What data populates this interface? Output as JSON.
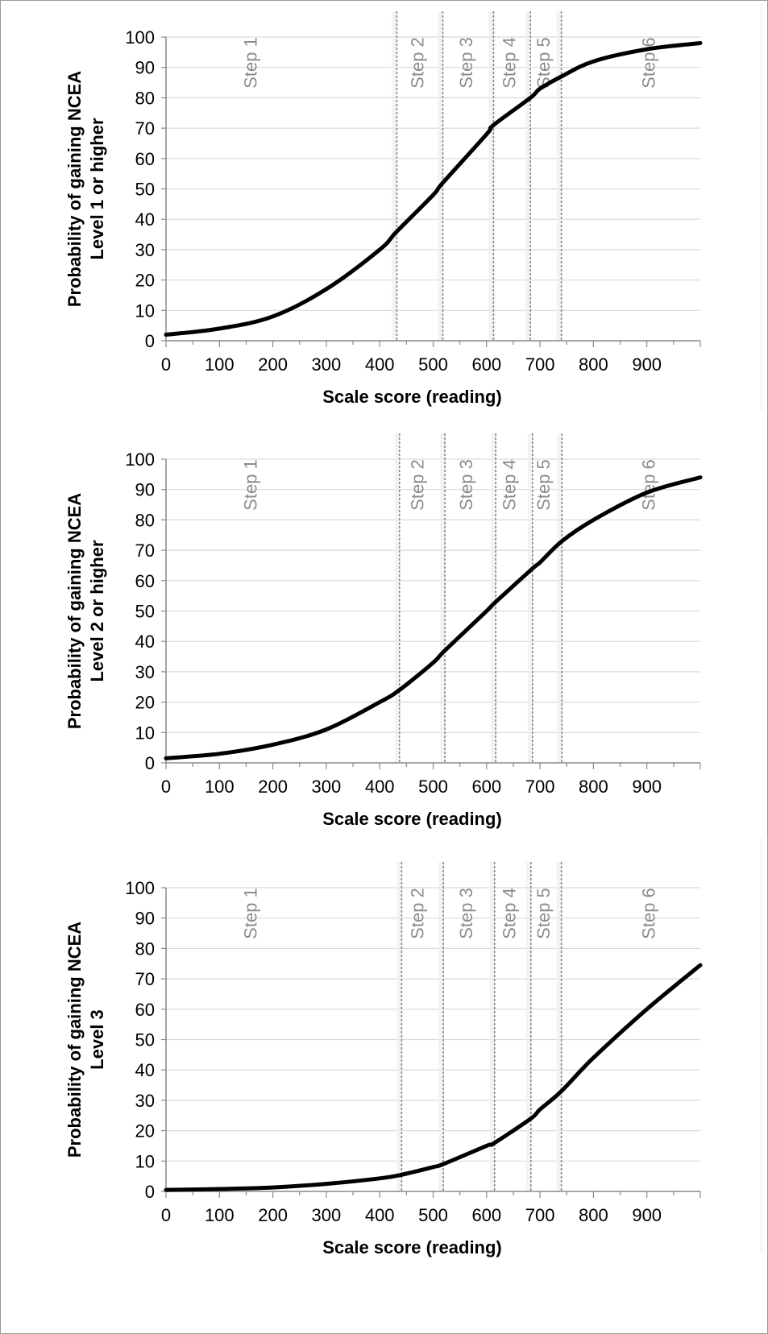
{
  "chart_data": [
    {
      "type": "line",
      "xlabel": "Scale score (reading)",
      "ylabel": [
        "Probability of gaining NCEA",
        "Level 1 or higher"
      ],
      "xlim": [
        0,
        1000
      ],
      "ylim": [
        0,
        100
      ],
      "x_ticks": [
        0,
        100,
        200,
        300,
        400,
        500,
        600,
        700,
        800,
        900
      ],
      "y_ticks": [
        0,
        10,
        20,
        30,
        40,
        50,
        60,
        70,
        80,
        90,
        100
      ],
      "grid": true,
      "step_lines": [
        432,
        518,
        613,
        682,
        740
      ],
      "step_labels": [
        {
          "label": "Step 1",
          "x": 170
        },
        {
          "label": "Step 2",
          "x": 482
        },
        {
          "label": "Step 3",
          "x": 573
        },
        {
          "label": "Step 4",
          "x": 654
        },
        {
          "label": "Step 5",
          "x": 718
        },
        {
          "label": "Step 6",
          "x": 915
        }
      ],
      "series": [
        {
          "x": [
            0,
            100,
            200,
            300,
            400,
            432,
            500,
            518,
            600,
            613,
            682,
            700,
            740,
            800,
            900,
            1000
          ],
          "y": [
            2,
            4,
            8,
            17,
            30,
            36,
            48,
            52,
            68,
            71,
            80,
            83,
            87,
            92,
            96,
            98
          ]
        }
      ]
    },
    {
      "type": "line",
      "xlabel": "Scale score (reading)",
      "ylabel": [
        "Probability of gaining NCEA",
        "Level 2 or higher"
      ],
      "xlim": [
        0,
        1000
      ],
      "ylim": [
        0,
        100
      ],
      "x_ticks": [
        0,
        100,
        200,
        300,
        400,
        500,
        600,
        700,
        800,
        900
      ],
      "y_ticks": [
        0,
        10,
        20,
        30,
        40,
        50,
        60,
        70,
        80,
        90,
        100
      ],
      "grid": true,
      "step_lines": [
        437,
        522,
        617,
        686,
        741
      ],
      "step_labels": [
        {
          "label": "Step 1",
          "x": 170
        },
        {
          "label": "Step 2",
          "x": 482
        },
        {
          "label": "Step 3",
          "x": 573
        },
        {
          "label": "Step 4",
          "x": 654
        },
        {
          "label": "Step 5",
          "x": 718
        },
        {
          "label": "Step 6",
          "x": 915
        }
      ],
      "series": [
        {
          "x": [
            0,
            100,
            200,
            300,
            400,
            437,
            500,
            522,
            600,
            617,
            686,
            700,
            741,
            800,
            900,
            1000
          ],
          "y": [
            1.5,
            3,
            6,
            11,
            20,
            24,
            33,
            37,
            50,
            53,
            64,
            66,
            73,
            80,
            89,
            94
          ]
        }
      ]
    },
    {
      "type": "line",
      "xlabel": "Scale score (reading)",
      "ylabel": [
        "Probability of gaining NCEA",
        "Level 3"
      ],
      "xlim": [
        0,
        1000
      ],
      "ylim": [
        0,
        100
      ],
      "x_ticks": [
        0,
        100,
        200,
        300,
        400,
        500,
        600,
        700,
        800,
        900
      ],
      "y_ticks": [
        0,
        10,
        20,
        30,
        40,
        50,
        60,
        70,
        80,
        90,
        100
      ],
      "grid": true,
      "step_lines": [
        441,
        519,
        615,
        683,
        740
      ],
      "step_labels": [
        {
          "label": "Step 1",
          "x": 170
        },
        {
          "label": "Step 2",
          "x": 482
        },
        {
          "label": "Step 3",
          "x": 573
        },
        {
          "label": "Step 4",
          "x": 654
        },
        {
          "label": "Step 5",
          "x": 718
        },
        {
          "label": "Step 6",
          "x": 915
        }
      ],
      "series": [
        {
          "x": [
            0,
            100,
            200,
            300,
            400,
            441,
            500,
            519,
            600,
            615,
            683,
            700,
            740,
            800,
            900,
            1000
          ],
          "y": [
            0.5,
            0.8,
            1.3,
            2.5,
            4.3,
            5.5,
            8,
            9,
            15,
            16,
            24,
            27,
            33,
            44,
            60,
            74.5
          ]
        }
      ]
    }
  ]
}
